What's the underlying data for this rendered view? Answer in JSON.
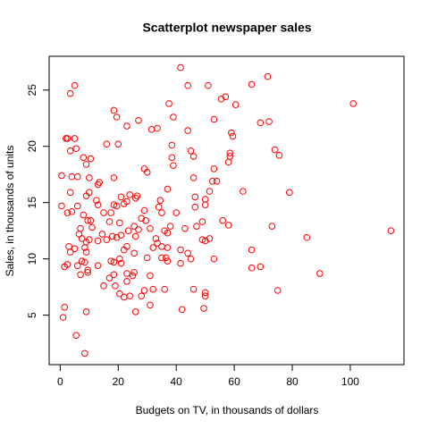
{
  "chart_data": {
    "type": "scatter",
    "title": "Scatterplot newspaper sales",
    "x_label": "Budgets on TV, in thousands of dollars",
    "y_label": "Sales, in thousands of units",
    "color": "#ff0000",
    "xlim": [
      -3.8,
      118.5
    ],
    "ylim": [
      0.6,
      28
    ],
    "xticks": [
      0,
      20,
      40,
      60,
      80,
      100
    ],
    "yticks": [
      5,
      10,
      15,
      20,
      25
    ],
    "x": [
      41.5,
      71.5,
      5,
      3.5,
      44,
      51,
      57,
      55.5,
      66,
      37.5,
      101,
      18.5,
      19.5,
      27,
      39,
      53,
      60.5,
      69,
      72,
      23,
      31.5,
      33.5,
      44,
      59,
      59.5,
      2,
      2.5,
      5,
      16,
      20,
      38.5,
      5.5,
      3.5,
      45,
      46,
      74,
      75.5,
      58.5,
      58.5,
      8,
      10.5,
      9,
      38.5,
      58,
      29,
      30,
      39,
      0.5,
      4,
      6,
      10,
      13.5,
      13,
      18.5,
      53,
      46,
      54,
      52.5,
      63,
      79,
      3.5,
      9,
      10,
      24,
      26.5,
      21,
      26,
      34.5,
      46.5,
      50,
      51.5,
      37,
      12.5,
      13,
      6,
      0.5,
      18.5,
      19.5,
      22,
      23,
      29,
      34,
      46.5,
      50,
      4,
      2.5,
      15,
      17.5,
      35,
      40,
      73,
      7,
      8,
      9.5,
      10.5,
      11,
      17,
      20.5,
      28,
      29.5,
      38,
      47,
      49,
      56,
      58,
      14.5,
      18,
      19.5,
      21,
      23.5,
      25.5,
      16,
      6.5,
      7.5,
      3,
      9,
      10,
      13,
      5,
      8.5,
      3.5,
      9,
      26,
      27,
      31,
      33,
      36,
      37,
      43,
      35,
      37,
      32,
      33.5,
      41.5,
      44,
      50,
      51.5,
      49,
      66,
      85,
      114,
      22,
      23,
      25.5,
      30,
      20.5,
      35,
      36.5,
      37,
      41.5,
      45,
      53,
      1.5,
      2.5,
      7.5,
      6,
      8.5,
      9.5,
      13,
      17.5,
      18.5,
      21,
      23,
      25.5,
      18.5,
      17,
      25,
      31,
      9.5,
      7,
      66,
      69,
      89.5,
      15,
      19,
      23,
      20.5,
      24,
      22,
      28,
      32,
      36,
      46,
      50,
      50,
      75,
      29,
      31,
      26,
      42,
      49.5,
      9,
      1.5,
      1,
      5.5,
      8.5
    ],
    "values": [
      27,
      26.2,
      25.4,
      24.7,
      25.4,
      25.4,
      24.4,
      24.2,
      25.5,
      23.8,
      23.8,
      23.2,
      22.6,
      22.3,
      22.6,
      22.4,
      23.7,
      22.1,
      22.2,
      21.8,
      21.5,
      21.6,
      21.4,
      21.2,
      20.9,
      20.7,
      20.7,
      20.7,
      20.2,
      20.2,
      20.1,
      19.8,
      19.6,
      19.6,
      19.1,
      19.7,
      19.2,
      19.4,
      19.1,
      19,
      18.9,
      18.4,
      19,
      18.6,
      18,
      17.7,
      18.3,
      17.4,
      17.3,
      17.3,
      17.2,
      16.8,
      16.6,
      17.2,
      18,
      17.2,
      16.9,
      16.9,
      16,
      15.9,
      15.9,
      15.6,
      15.9,
      15.7,
      15.6,
      15.5,
      15.4,
      15.2,
      15.5,
      15.3,
      16,
      16.2,
      15.2,
      14.8,
      14.7,
      14.7,
      14.8,
      14.7,
      14.9,
      15.1,
      14.3,
      14.6,
      14.6,
      14.8,
      14.2,
      14.1,
      14.1,
      14.1,
      14.1,
      14.1,
      12.9,
      12.7,
      13.9,
      13.4,
      13.4,
      12.8,
      13.3,
      13.2,
      13.6,
      13.4,
      12.9,
      12.9,
      13.3,
      13.4,
      13,
      12.2,
      12,
      11.9,
      12.1,
      12.5,
      12.9,
      11.7,
      12.2,
      11.8,
      11.1,
      11.5,
      11.7,
      11.6,
      10.9,
      11,
      10.6,
      10.6,
      12,
      12.6,
      12.7,
      11.8,
      12.5,
      12.3,
      12.7,
      11.1,
      11,
      11,
      11.4,
      10.8,
      10.5,
      11.6,
      11.8,
      11.7,
      10.8,
      11.9,
      12.5,
      10.8,
      11.1,
      10.5,
      10.1,
      10,
      10.1,
      10.1,
      9.8,
      9.6,
      10,
      10,
      9.3,
      9.5,
      9.8,
      9.4,
      9.7,
      9,
      9.4,
      9.8,
      9.7,
      9.6,
      8.7,
      8.8,
      8.6,
      8.3,
      8.5,
      8.5,
      8.8,
      8.6,
      9.2,
      9.3,
      8.7,
      7.6,
      7.6,
      8,
      6.9,
      6.7,
      6.6,
      6.7,
      7.3,
      7.3,
      7.3,
      7,
      6.7,
      7.2,
      7.2,
      5.9,
      5.3,
      5.5,
      5.6,
      5.3,
      5.7,
      4.8,
      3.2,
      1.6
    ]
  }
}
